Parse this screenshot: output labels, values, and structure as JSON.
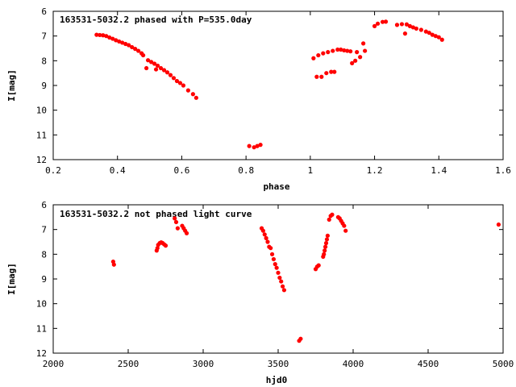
{
  "colors": {
    "points": "#ff0000",
    "axes": "#000000",
    "background": "#ffffff"
  },
  "chart_data": [
    {
      "type": "scatter",
      "title": "163531-5032.2 phased with P=535.0day",
      "xlabel": "phase",
      "ylabel": "I[mag]",
      "xlim": [
        0.2,
        1.6
      ],
      "ylim": [
        12,
        6
      ],
      "y_inverted": true,
      "grid": false,
      "legend": "none",
      "xticks": [
        "0.2",
        "0.4",
        "0.6",
        "0.8",
        "1",
        "1.2",
        "1.4",
        "1.6"
      ],
      "yticks": [
        "6",
        "7",
        "8",
        "9",
        "10",
        "11",
        "12"
      ],
      "series": [
        {
          "points": [
            [
              0.335,
              6.95
            ],
            [
              0.345,
              6.96
            ],
            [
              0.355,
              6.97
            ],
            [
              0.365,
              7.0
            ],
            [
              0.375,
              7.06
            ],
            [
              0.385,
              7.11
            ],
            [
              0.395,
              7.17
            ],
            [
              0.405,
              7.22
            ],
            [
              0.415,
              7.27
            ],
            [
              0.425,
              7.32
            ],
            [
              0.435,
              7.37
            ],
            [
              0.445,
              7.45
            ],
            [
              0.455,
              7.52
            ],
            [
              0.465,
              7.6
            ],
            [
              0.475,
              7.7
            ],
            [
              0.48,
              7.78
            ],
            [
              0.49,
              8.3
            ],
            [
              0.495,
              7.98
            ],
            [
              0.505,
              8.05
            ],
            [
              0.515,
              8.12
            ],
            [
              0.52,
              8.35
            ],
            [
              0.525,
              8.2
            ],
            [
              0.535,
              8.3
            ],
            [
              0.545,
              8.38
            ],
            [
              0.555,
              8.47
            ],
            [
              0.565,
              8.58
            ],
            [
              0.575,
              8.7
            ],
            [
              0.585,
              8.82
            ],
            [
              0.595,
              8.9
            ],
            [
              0.605,
              9.0
            ],
            [
              0.62,
              9.2
            ],
            [
              0.635,
              9.35
            ],
            [
              0.645,
              9.5
            ],
            [
              0.81,
              11.45
            ],
            [
              0.825,
              11.5
            ],
            [
              0.835,
              11.45
            ],
            [
              0.845,
              11.4
            ],
            [
              1.01,
              7.9
            ],
            [
              1.02,
              8.65
            ],
            [
              1.025,
              7.78
            ],
            [
              1.035,
              8.65
            ],
            [
              1.04,
              7.7
            ],
            [
              1.05,
              8.5
            ],
            [
              1.055,
              7.65
            ],
            [
              1.065,
              8.45
            ],
            [
              1.07,
              7.6
            ],
            [
              1.075,
              8.45
            ],
            [
              1.085,
              7.55
            ],
            [
              1.095,
              7.55
            ],
            [
              1.105,
              7.58
            ],
            [
              1.115,
              7.6
            ],
            [
              1.125,
              7.62
            ],
            [
              1.13,
              8.1
            ],
            [
              1.14,
              8.0
            ],
            [
              1.145,
              7.65
            ],
            [
              1.155,
              7.85
            ],
            [
              1.165,
              7.3
            ],
            [
              1.17,
              7.6
            ],
            [
              1.2,
              6.6
            ],
            [
              1.21,
              6.5
            ],
            [
              1.225,
              6.43
            ],
            [
              1.235,
              6.42
            ],
            [
              1.27,
              6.55
            ],
            [
              1.285,
              6.52
            ],
            [
              1.295,
              6.9
            ],
            [
              1.3,
              6.53
            ],
            [
              1.31,
              6.6
            ],
            [
              1.32,
              6.65
            ],
            [
              1.33,
              6.7
            ],
            [
              1.345,
              6.75
            ],
            [
              1.36,
              6.82
            ],
            [
              1.37,
              6.87
            ],
            [
              1.38,
              6.95
            ],
            [
              1.39,
              7.0
            ],
            [
              1.4,
              7.05
            ],
            [
              1.41,
              7.15
            ]
          ]
        }
      ]
    },
    {
      "type": "scatter",
      "title": "163531-5032.2 not phased light curve",
      "xlabel": "hjd0",
      "ylabel": "I[mag]",
      "xlim": [
        2000,
        5000
      ],
      "ylim": [
        12,
        6
      ],
      "y_inverted": true,
      "grid": false,
      "legend": "none",
      "xticks": [
        "2000",
        "2500",
        "3000",
        "3500",
        "4000",
        "4500",
        "5000"
      ],
      "yticks": [
        "6",
        "7",
        "8",
        "9",
        "10",
        "11",
        "12"
      ],
      "series": [
        {
          "points": [
            [
              2400,
              8.3
            ],
            [
              2405,
              8.42
            ],
            [
              2690,
              7.85
            ],
            [
              2695,
              7.75
            ],
            [
              2700,
              7.62
            ],
            [
              2710,
              7.55
            ],
            [
              2720,
              7.52
            ],
            [
              2730,
              7.55
            ],
            [
              2740,
              7.6
            ],
            [
              2750,
              7.65
            ],
            [
              2810,
              6.55
            ],
            [
              2820,
              6.7
            ],
            [
              2830,
              6.95
            ],
            [
              2860,
              6.85
            ],
            [
              2870,
              6.95
            ],
            [
              2880,
              7.05
            ],
            [
              2890,
              7.15
            ],
            [
              3390,
              6.95
            ],
            [
              3400,
              7.05
            ],
            [
              3410,
              7.2
            ],
            [
              3420,
              7.35
            ],
            [
              3430,
              7.5
            ],
            [
              3440,
              7.7
            ],
            [
              3450,
              7.75
            ],
            [
              3460,
              8.0
            ],
            [
              3470,
              8.2
            ],
            [
              3480,
              8.4
            ],
            [
              3490,
              8.55
            ],
            [
              3500,
              8.75
            ],
            [
              3510,
              8.95
            ],
            [
              3520,
              9.1
            ],
            [
              3530,
              9.3
            ],
            [
              3540,
              9.45
            ],
            [
              3640,
              11.5
            ],
            [
              3650,
              11.42
            ],
            [
              3750,
              8.6
            ],
            [
              3760,
              8.5
            ],
            [
              3770,
              8.45
            ],
            [
              3800,
              8.1
            ],
            [
              3805,
              8.0
            ],
            [
              3810,
              7.85
            ],
            [
              3815,
              7.7
            ],
            [
              3820,
              7.55
            ],
            [
              3825,
              7.4
            ],
            [
              3830,
              7.25
            ],
            [
              3840,
              6.6
            ],
            [
              3850,
              6.45
            ],
            [
              3860,
              6.4
            ],
            [
              3900,
              6.5
            ],
            [
              3910,
              6.55
            ],
            [
              3920,
              6.65
            ],
            [
              3930,
              6.75
            ],
            [
              3940,
              6.85
            ],
            [
              3950,
              7.05
            ],
            [
              4970,
              6.8
            ]
          ]
        }
      ]
    }
  ]
}
